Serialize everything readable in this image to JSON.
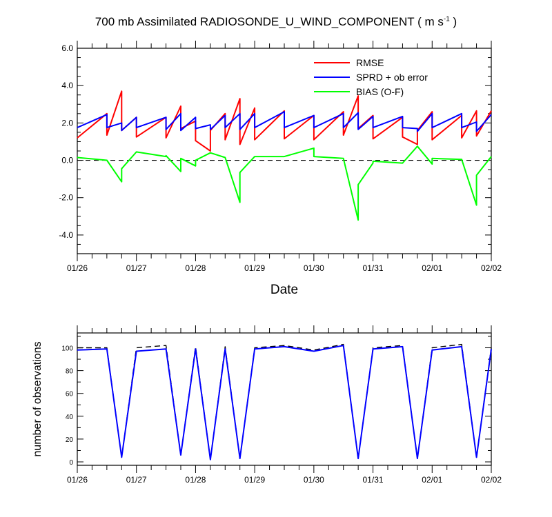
{
  "title": {
    "main": "700 mb Assimilated RADIOSONDE_U_WIND_COMPONENT",
    "units_open": "( m s",
    "units_sup": "-1",
    "units_close": " )"
  },
  "chart_data": [
    {
      "type": "line",
      "xlabel": "Date",
      "ylabel": "",
      "x_tick_labels": [
        "01/26",
        "01/27",
        "01/28",
        "01/29",
        "01/30",
        "01/31",
        "02/01",
        "02/02"
      ],
      "y_tick_labels": [
        "-4.0",
        "-2.0",
        "0.0",
        "2.0",
        "4.0",
        "6.0"
      ],
      "xlim_days": [
        0,
        7
      ],
      "ylim": [
        -5,
        6
      ],
      "legend_position": "top-right",
      "reference_line": {
        "y": 0,
        "style": "dashed",
        "color": "#000000"
      },
      "series": [
        {
          "name": "RMSE",
          "color": "#ff0000",
          "x": [
            0,
            0.5,
            0.5,
            0.75,
            0.75,
            1,
            1,
            1.5,
            1.5,
            1.75,
            1.75,
            2,
            2,
            2.25,
            2.25,
            2.5,
            2.5,
            2.75,
            2.75,
            3,
            3,
            3.5,
            3.5,
            4,
            4,
            4.5,
            4.5,
            4.75,
            4.75,
            5,
            5,
            5.5,
            5.5,
            5.75,
            5.75,
            6,
            6,
            6.5,
            6.5,
            6.75,
            6.75,
            7
          ],
          "y": [
            1.2,
            2.5,
            1.35,
            3.7,
            1.6,
            2.3,
            1.25,
            2.3,
            1.2,
            2.9,
            1.7,
            2.1,
            1.05,
            0.5,
            1.6,
            2.5,
            1.1,
            3.3,
            0.85,
            2.8,
            1.1,
            2.65,
            1.15,
            2.4,
            1.1,
            2.6,
            1.35,
            3.45,
            1.7,
            2.4,
            1.15,
            2.3,
            1.25,
            0.85,
            1.6,
            2.6,
            1.1,
            2.4,
            1.2,
            2.65,
            1.3,
            2.65
          ]
        },
        {
          "name": "SPRD + ob error",
          "color": "#0000ff",
          "x": [
            0,
            0.5,
            0.5,
            0.75,
            0.75,
            1,
            1,
            1.5,
            1.5,
            1.75,
            1.75,
            2,
            2,
            2.25,
            2.25,
            2.5,
            2.5,
            2.75,
            2.75,
            3,
            3,
            3.5,
            3.5,
            4,
            4,
            4.5,
            4.5,
            4.75,
            4.75,
            5,
            5,
            5.5,
            5.5,
            5.75,
            5.75,
            6,
            6,
            6.5,
            6.5,
            6.75,
            6.75,
            7
          ],
          "y": [
            1.75,
            2.45,
            1.75,
            2.0,
            1.6,
            2.3,
            1.75,
            2.3,
            1.65,
            2.5,
            1.6,
            2.3,
            1.7,
            1.9,
            1.65,
            2.4,
            1.75,
            2.5,
            1.65,
            2.5,
            1.75,
            2.6,
            1.75,
            2.4,
            1.75,
            2.5,
            1.75,
            2.55,
            1.65,
            2.35,
            1.75,
            2.35,
            1.75,
            1.7,
            1.55,
            2.5,
            1.75,
            2.5,
            1.75,
            2.05,
            1.55,
            2.45
          ]
        },
        {
          "name": "BIAS (O-F)",
          "color": "#00ff00",
          "x": [
            0,
            0.5,
            0.75,
            0.75,
            1,
            1.5,
            1.5,
            1.75,
            1.75,
            2,
            2,
            2.25,
            2.5,
            2.75,
            2.75,
            3,
            3.5,
            4,
            4,
            4.5,
            4.75,
            4.75,
            5,
            5,
            5.5,
            5.75,
            6,
            6,
            6.5,
            6.75,
            6.75,
            7
          ],
          "y": [
            0.15,
            0.0,
            -1.15,
            -0.45,
            0.45,
            0.2,
            0.25,
            -0.6,
            0.1,
            -0.3,
            0.0,
            0.4,
            0.15,
            -2.25,
            -0.65,
            0.2,
            0.2,
            0.65,
            0.2,
            0.1,
            -3.2,
            -1.3,
            -0.15,
            -0.05,
            -0.15,
            0.75,
            -0.2,
            0.1,
            0.05,
            -2.4,
            -0.8,
            0.2
          ]
        }
      ]
    },
    {
      "type": "line",
      "xlabel": "",
      "ylabel": "number of observations",
      "x_tick_labels": [
        "01/26",
        "01/27",
        "01/28",
        "01/29",
        "01/30",
        "01/31",
        "02/01",
        "02/02"
      ],
      "y_tick_labels": [
        "0",
        "20",
        "40",
        "60",
        "80",
        "100"
      ],
      "xlim_days": [
        0,
        7
      ],
      "ylim": [
        -3,
        113
      ],
      "series": [
        {
          "name": "",
          "style": "dashed",
          "color": "#000000",
          "x": [
            0,
            0.5,
            0.75,
            1,
            1.5,
            1.75,
            2,
            2.25,
            2.5,
            2.75,
            3,
            3.5,
            4,
            4.5,
            4.75,
            5,
            5.5,
            5.75,
            6,
            6.5,
            6.75,
            7
          ],
          "y": [
            100,
            100,
            4,
            100,
            102,
            6,
            101,
            2,
            101,
            3,
            100,
            102,
            98,
            103,
            3,
            100,
            102,
            3,
            100,
            103,
            4,
            100
          ]
        },
        {
          "name": "",
          "style": "solid",
          "color": "#0000ff",
          "x": [
            0,
            0.5,
            0.75,
            1,
            1.5,
            1.75,
            2,
            2.25,
            2.5,
            2.75,
            3,
            3.5,
            4,
            4.5,
            4.75,
            5,
            5.5,
            5.75,
            6,
            6.5,
            6.75,
            7
          ],
          "y": [
            98,
            99,
            4,
            97,
            99,
            6,
            99,
            2,
            99,
            3,
            99,
            101,
            97,
            102,
            3,
            99,
            101,
            3,
            98,
            101,
            4,
            99
          ]
        }
      ]
    }
  ]
}
